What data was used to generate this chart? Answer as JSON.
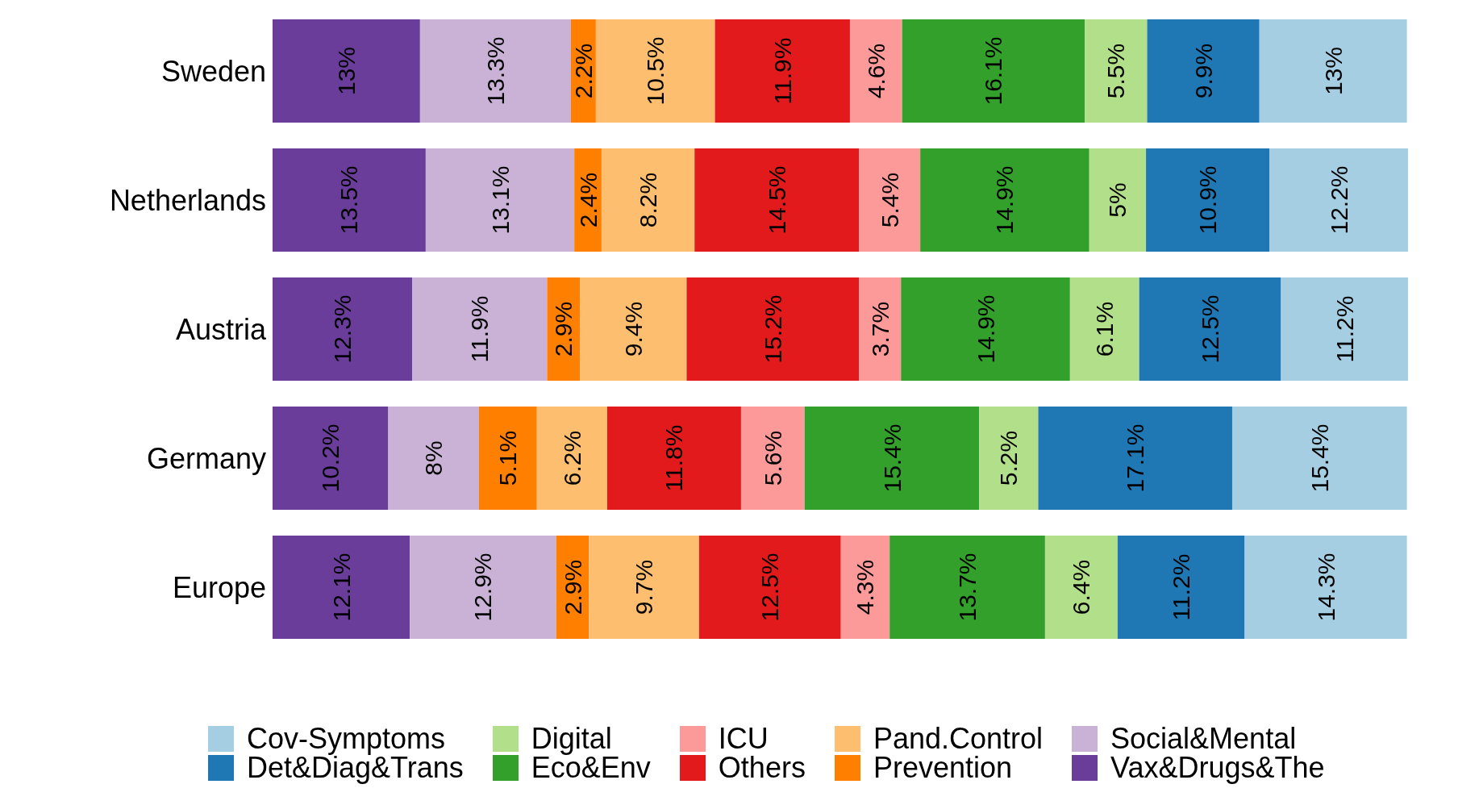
{
  "chart_data": {
    "type": "bar",
    "orientation": "horizontal",
    "stacked": true,
    "tick_labels": "y",
    "legend": "bottom",
    "grid": false,
    "categories": [
      "Sweden",
      "Netherlands",
      "Austria",
      "Germany",
      "Europe"
    ],
    "series": [
      {
        "name": "Vax&Drugs&The",
        "color": "#6a3d9a",
        "values": [
          13,
          13.5,
          12.3,
          10.2,
          12.1
        ],
        "value_labels": [
          "13%",
          "13.5%",
          "12.3%",
          "10.2%",
          "12.1%"
        ]
      },
      {
        "name": "Social&Mental",
        "color": "#cab2d6",
        "values": [
          13.3,
          13.1,
          11.9,
          8,
          12.9
        ],
        "value_labels": [
          "13.3%",
          "13.1%",
          "11.9%",
          "8%",
          "12.9%"
        ]
      },
      {
        "name": "Prevention",
        "color": "#ff7f00",
        "values": [
          2.2,
          2.4,
          2.9,
          5.1,
          2.9
        ],
        "value_labels": [
          "2.2%",
          "2.4%",
          "2.9%",
          "5.1%",
          "2.9%"
        ]
      },
      {
        "name": "Pand.Control",
        "color": "#fdbf6f",
        "values": [
          10.5,
          8.2,
          9.4,
          6.2,
          9.7
        ],
        "value_labels": [
          "10.5%",
          "8.2%",
          "9.4%",
          "6.2%",
          "9.7%"
        ]
      },
      {
        "name": "Others",
        "color": "#e31a1c",
        "values": [
          11.9,
          14.5,
          15.2,
          11.8,
          12.5
        ],
        "value_labels": [
          "11.9%",
          "14.5%",
          "15.2%",
          "11.8%",
          "12.5%"
        ]
      },
      {
        "name": "ICU",
        "color": "#fb9a99",
        "values": [
          4.6,
          5.4,
          3.7,
          5.6,
          4.3
        ],
        "value_labels": [
          "4.6%",
          "5.4%",
          "3.7%",
          "5.6%",
          "4.3%"
        ]
      },
      {
        "name": "Eco&Env",
        "color": "#33a02c",
        "values": [
          16.1,
          14.9,
          14.9,
          15.4,
          13.7
        ],
        "value_labels": [
          "16.1%",
          "14.9%",
          "14.9%",
          "15.4%",
          "13.7%"
        ]
      },
      {
        "name": "Digital",
        "color": "#b2df8a",
        "values": [
          5.5,
          5,
          6.1,
          5.2,
          6.4
        ],
        "value_labels": [
          "5.5%",
          "5%",
          "6.1%",
          "5.2%",
          "6.4%"
        ]
      },
      {
        "name": "Det&Diag&Trans",
        "color": "#1f78b4",
        "values": [
          9.9,
          10.9,
          12.5,
          17.1,
          11.2
        ],
        "value_labels": [
          "9.9%",
          "10.9%",
          "12.5%",
          "17.1%",
          "11.2%"
        ]
      },
      {
        "name": "Cov-Symptoms",
        "color": "#a6cee3",
        "values": [
          13,
          12.2,
          11.2,
          15.4,
          14.3
        ],
        "value_labels": [
          "13%",
          "12.2%",
          "11.2%",
          "15.4%",
          "14.3%"
        ]
      }
    ]
  }
}
